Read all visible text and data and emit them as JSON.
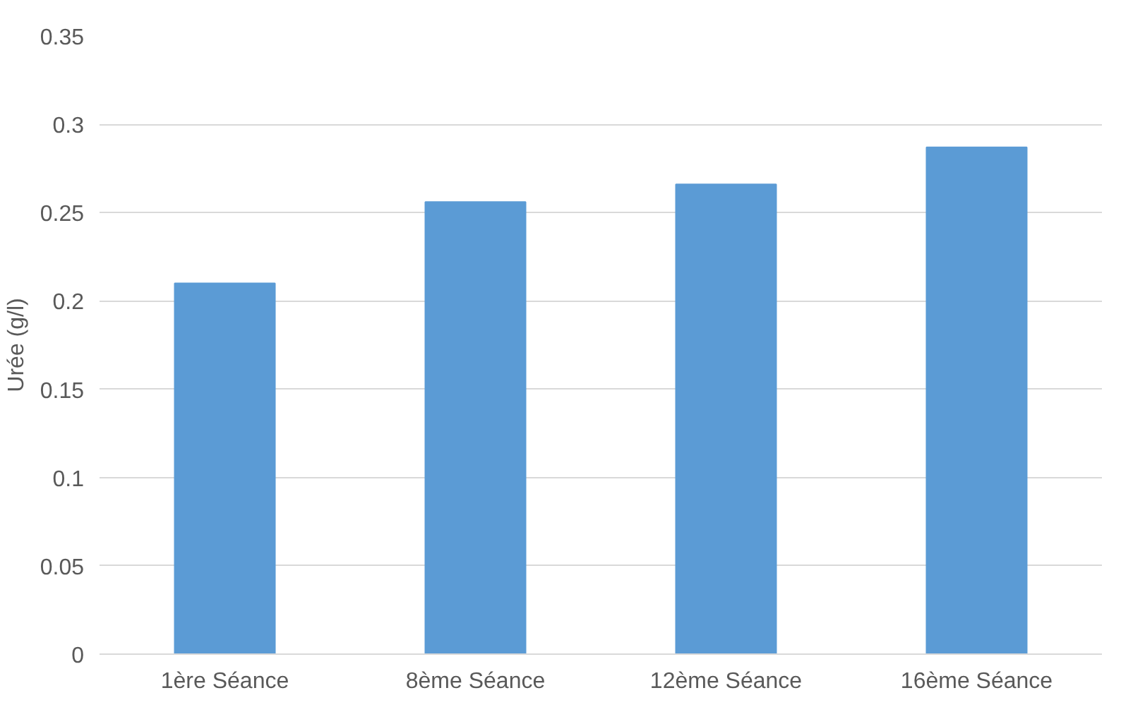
{
  "chart_data": {
    "type": "bar",
    "ylabel": "Urée (g/l)",
    "categories": [
      "1ère Séance",
      "8ème Séance",
      "12ème Séance",
      "16ème Séance"
    ],
    "values": [
      0.21,
      0.256,
      0.266,
      0.287
    ],
    "color": "#5b9bd5",
    "ylim": [
      0,
      0.35
    ],
    "yticks": [
      {
        "value": 0,
        "label": "0"
      },
      0.05,
      0.1,
      0.15,
      0.2,
      0.25,
      {
        "value": 0.3,
        "label": "0.3"
      },
      0.35
    ],
    "grid": "y"
  }
}
